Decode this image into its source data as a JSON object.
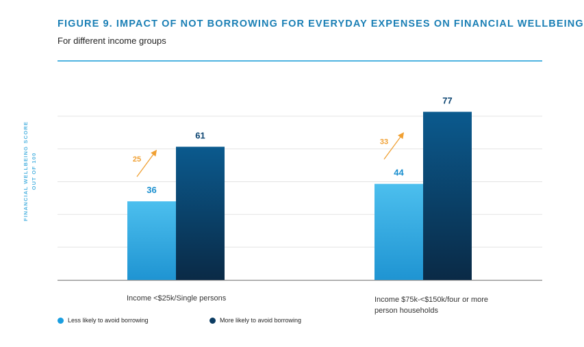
{
  "chart_data": {
    "type": "bar",
    "title": "FIGURE 9. IMPACT OF NOT BORROWING FOR EVERYDAY EXPENSES ON FINANCIAL WELLBEING",
    "subtitle": "For different income groups",
    "ylabel_line1": "FINANCIAL WELLBEING SCORE",
    "ylabel_line2": "OUT OF 100",
    "xlabel": "",
    "ylim": [
      0,
      100
    ],
    "grid": true,
    "categories": [
      "Income <$25k/Single persons",
      "Income $75k-<$150k/four or more person households"
    ],
    "series": [
      {
        "name": "Less likely to avoid borrowing",
        "values": [
          36,
          44
        ],
        "color_top": "#4cbfee",
        "color_bottom": "#1f94d2"
      },
      {
        "name": "More likely to avoid borrowing",
        "values": [
          61,
          77
        ],
        "color_top": "#0b5a8e",
        "color_bottom": "#0a2a46"
      }
    ],
    "differences": [
      "25",
      "33"
    ],
    "difference_color": "#f0a033",
    "legend_position": "bottom-left"
  }
}
